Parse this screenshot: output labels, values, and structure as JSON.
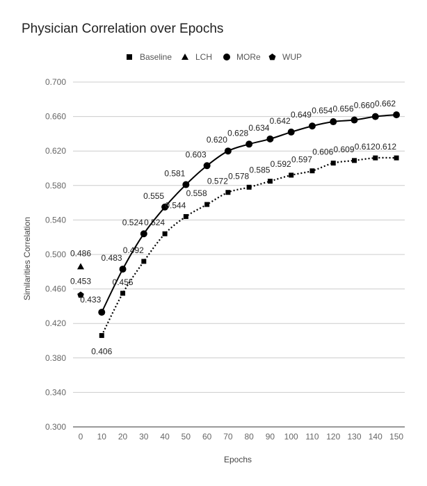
{
  "chart_data": {
    "type": "line",
    "title": "Physician Correlation over Epochs",
    "xlabel": "Epochs",
    "ylabel": "Similarities Correlation",
    "ylim": [
      0.3,
      0.7
    ],
    "yticks": [
      "0.300",
      "0.340",
      "0.380",
      "0.420",
      "0.460",
      "0.500",
      "0.540",
      "0.580",
      "0.620",
      "0.660",
      "0.700"
    ],
    "categories": [
      "0",
      "10",
      "20",
      "30",
      "40",
      "50",
      "60",
      "70",
      "80",
      "90",
      "100",
      "110",
      "120",
      "130",
      "140",
      "150"
    ],
    "legend_position": "top",
    "grid": true,
    "series": [
      {
        "name": "Baseline",
        "marker": "square",
        "line": "dotted",
        "color": "#000000",
        "values": [
          null,
          0.406,
          0.455,
          0.492,
          0.524,
          0.544,
          0.558,
          0.572,
          0.578,
          0.585,
          0.592,
          0.597,
          0.606,
          0.609,
          0.612,
          0.612
        ],
        "labels": [
          null,
          "0.406",
          "0.455",
          "0.492",
          "0.524",
          "0.544",
          "0.558",
          "0.572",
          "0.578",
          "0.585",
          "0.592",
          "0.597",
          "0.606",
          "0.609",
          "0.612",
          "0.612"
        ]
      },
      {
        "name": "LCH",
        "marker": "triangle",
        "line": "none",
        "color": "#000000",
        "values": [
          0.486,
          null,
          null,
          null,
          null,
          null,
          null,
          null,
          null,
          null,
          null,
          null,
          null,
          null,
          null,
          null
        ],
        "labels": [
          "0.486",
          null,
          null,
          null,
          null,
          null,
          null,
          null,
          null,
          null,
          null,
          null,
          null,
          null,
          null,
          null
        ]
      },
      {
        "name": "MORe",
        "marker": "circle",
        "line": "solid",
        "color": "#000000",
        "values": [
          null,
          0.433,
          0.483,
          0.524,
          0.555,
          0.581,
          0.603,
          0.62,
          0.628,
          0.634,
          0.642,
          0.649,
          0.654,
          0.656,
          0.66,
          0.662
        ],
        "labels": [
          null,
          "0.433",
          "0.483",
          "0.524",
          "0.555",
          "0.581",
          "0.603",
          "0.620",
          "0.628",
          "0.634",
          "0.642",
          "0.649",
          "0.654",
          "0.656",
          "0.660",
          "0.662"
        ]
      },
      {
        "name": "WUP",
        "marker": "pentagon",
        "line": "none",
        "color": "#000000",
        "values": [
          0.453,
          null,
          null,
          null,
          null,
          null,
          null,
          null,
          null,
          null,
          null,
          null,
          null,
          null,
          null,
          null
        ],
        "labels": [
          "0.453",
          null,
          null,
          null,
          null,
          null,
          null,
          null,
          null,
          null,
          null,
          null,
          null,
          null,
          null,
          null
        ]
      }
    ]
  }
}
